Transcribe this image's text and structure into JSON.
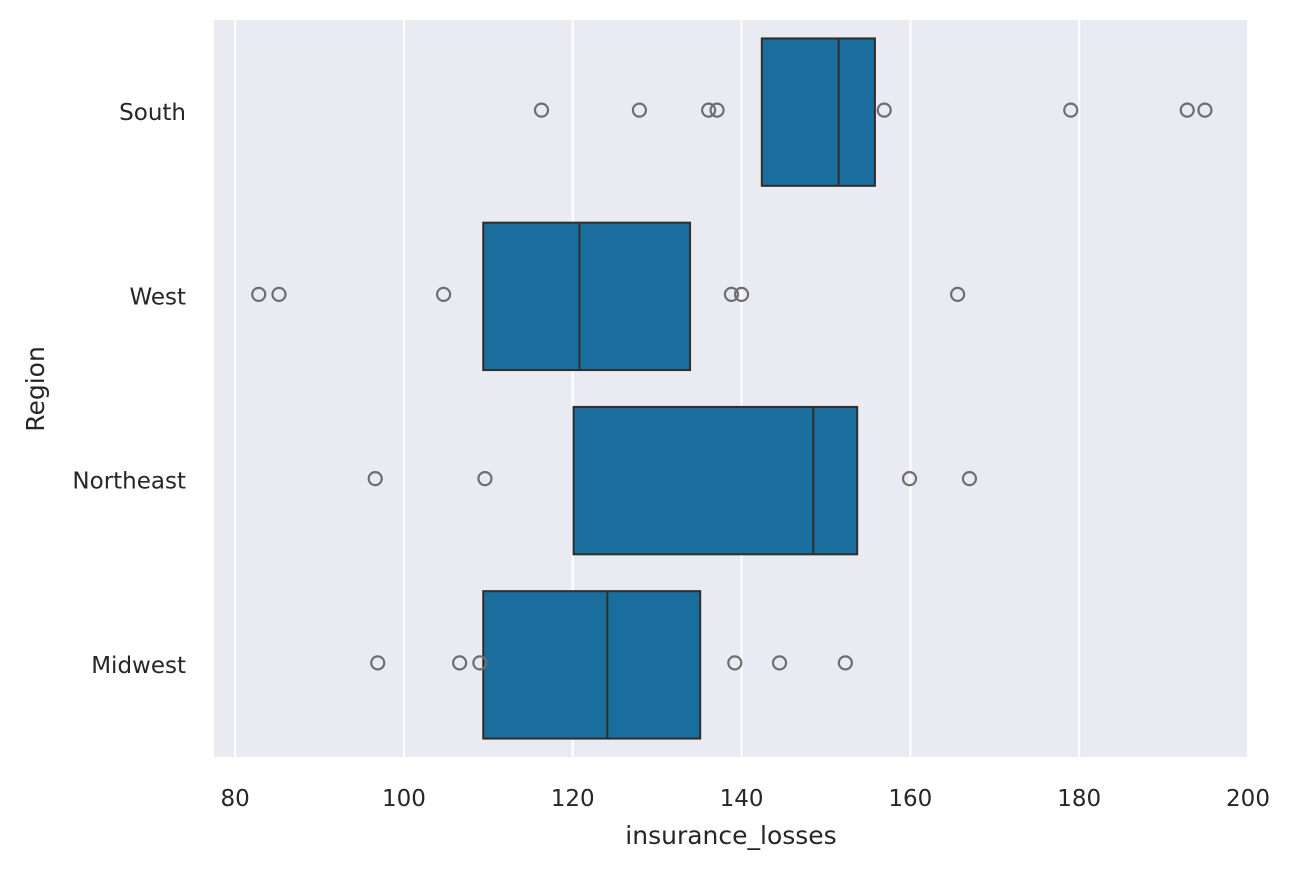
{
  "chart_data": {
    "type": "boxplot",
    "orientation": "horizontal",
    "title": "",
    "xlabel": "insurance_losses",
    "ylabel": "Region",
    "xlim": [
      77.5,
      200
    ],
    "xticks": [
      80,
      100,
      120,
      140,
      160,
      180,
      200
    ],
    "grid": true,
    "categories": [
      "South",
      "West",
      "Northeast",
      "Midwest"
    ],
    "boxes": [
      {
        "category": "South",
        "q1": 142.4,
        "median": 151.5,
        "q3": 155.8,
        "outliers": [
          116.3,
          127.9,
          136.1,
          137.1,
          156.9,
          179.0,
          192.8,
          194.9
        ]
      },
      {
        "category": "West",
        "q1": 109.4,
        "median": 120.8,
        "q3": 133.9,
        "outliers": [
          82.8,
          85.2,
          104.7,
          138.8,
          140.0,
          165.6
        ]
      },
      {
        "category": "Northeast",
        "q1": 120.1,
        "median": 148.5,
        "q3": 153.7,
        "outliers": [
          96.6,
          109.6,
          159.9,
          167.0
        ]
      },
      {
        "category": "Midwest",
        "q1": 109.4,
        "median": 124.1,
        "q3": 135.1,
        "outliers": [
          96.9,
          106.6,
          109.0,
          139.2,
          144.5,
          152.3
        ]
      }
    ],
    "colors": {
      "box_fill": "#1a6e9e",
      "box_edge": "#2e2e2e",
      "plot_bg": "#eaeaf2",
      "grid": "#ffffff",
      "outlier": "#6e6e6e"
    }
  }
}
